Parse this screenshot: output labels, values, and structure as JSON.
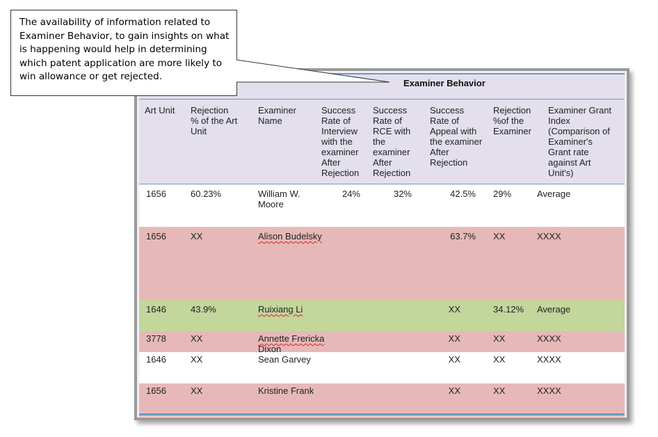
{
  "callout": {
    "text": "The availability of information related to Examiner Behavior, to gain insights on what is happening would help in determining which patent application are more likely to win allowance or get rejected."
  },
  "table": {
    "title": "Examiner Behavior",
    "headers": [
      "Art Unit",
      "Rejection\n% of the Art\nUnit",
      "Examiner\nName",
      "Success\nRate of\nInterview\nwith the\nexaminer\nAfter\nRejection",
      "Success\nRate of\nRCE with\nthe\nexaminer\nAfter\nRejection",
      "Success\nRate of\nAppeal with\nthe examiner\nAfter\nRejection",
      "Rejection\n%of    the\nExaminer",
      "Examiner Grant\nIndex\n(Comparison of\nExaminer's\nGrant rate\nagainst Art\nUnit's)"
    ],
    "rows": [
      {
        "art_unit": "1656",
        "rejection_art_unit": "60.23%",
        "examiner": "William W.\nMoore",
        "interview": "24%",
        "rce": "32%",
        "appeal": "42.5%",
        "rejection_examiner": "29%",
        "grant_index": "Average",
        "color": "white"
      },
      {
        "art_unit": "1656",
        "rejection_art_unit": "XX",
        "examiner": "Alison Budelsky",
        "interview": "",
        "rce": "",
        "appeal": "63.7%",
        "rejection_examiner": "XX",
        "grant_index": "XXXX",
        "color": "pink"
      },
      {
        "art_unit": "1646",
        "rejection_art_unit": "43.9%",
        "examiner": "Ruixiang Li",
        "interview": "",
        "rce": "",
        "appeal": "XX",
        "rejection_examiner": "34.12%",
        "grant_index": "Average",
        "color": "green"
      },
      {
        "art_unit": "3778",
        "rejection_art_unit": "XX",
        "examiner": "Annette Frericka\nDixon",
        "interview": "",
        "rce": "",
        "appeal": "XX",
        "rejection_examiner": "XX",
        "grant_index": "XXXX",
        "color": "pink"
      },
      {
        "art_unit": "1646",
        "rejection_art_unit": "XX",
        "examiner": "Sean Garvey",
        "interview": "",
        "rce": "",
        "appeal": "XX",
        "rejection_examiner": "XX",
        "grant_index": "XXXX",
        "color": "white"
      },
      {
        "art_unit": "1656",
        "rejection_art_unit": "XX",
        "examiner": "Kristine Frank",
        "interview": "",
        "rce": "",
        "appeal": "XX",
        "rejection_examiner": "XX",
        "grant_index": "XXXX",
        "color": "pink"
      }
    ]
  },
  "colors": {
    "row_pink": "#e6b9b8",
    "row_green": "#c3d69b",
    "header_lavender": "#e3dfec",
    "rule_blue": "#6e99c2"
  }
}
